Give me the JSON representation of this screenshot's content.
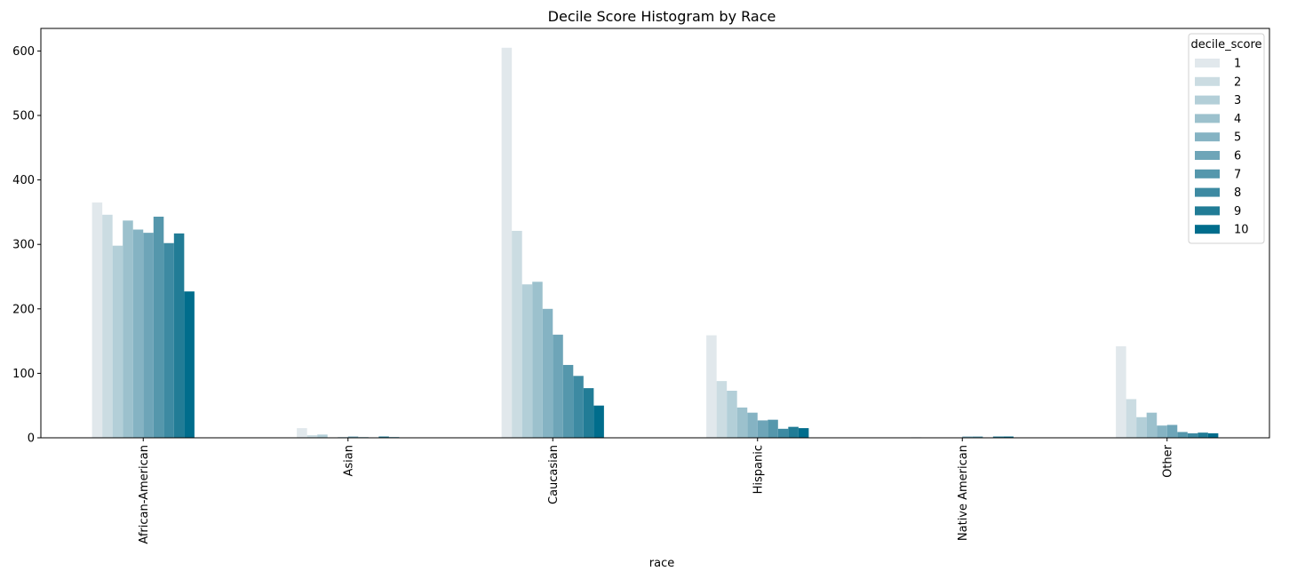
{
  "chart_data": {
    "type": "bar",
    "title": "Decile Score Histogram by Race",
    "xlabel": "race",
    "ylabel": "",
    "ylim": [
      0,
      635
    ],
    "yticks": [
      0,
      100,
      200,
      300,
      400,
      500,
      600
    ],
    "grid": false,
    "legend_title": "decile_score",
    "legend_position": "top-right",
    "categories": [
      "African-American",
      "Asian",
      "Caucasian",
      "Hispanic",
      "Native American",
      "Other"
    ],
    "series": [
      {
        "name": "1",
        "color": "#e1e8ec",
        "values": [
          365,
          15,
          605,
          159,
          1,
          142
        ]
      },
      {
        "name": "2",
        "color": "#cbdce2",
        "values": [
          346,
          4,
          321,
          88,
          0,
          60
        ]
      },
      {
        "name": "3",
        "color": "#b3cfd8",
        "values": [
          298,
          5,
          238,
          73,
          0,
          32
        ]
      },
      {
        "name": "4",
        "color": "#9cc1cd",
        "values": [
          337,
          0,
          242,
          47,
          0,
          39
        ]
      },
      {
        "name": "5",
        "color": "#85b3c3",
        "values": [
          323,
          1,
          200,
          39,
          0,
          19
        ]
      },
      {
        "name": "6",
        "color": "#6ea5b8",
        "values": [
          318,
          2,
          160,
          27,
          2,
          20
        ]
      },
      {
        "name": "7",
        "color": "#5597ac",
        "values": [
          343,
          1,
          113,
          28,
          2,
          9
        ]
      },
      {
        "name": "8",
        "color": "#3d8aa2",
        "values": [
          302,
          0,
          96,
          14,
          0,
          7
        ]
      },
      {
        "name": "9",
        "color": "#217c96",
        "values": [
          317,
          2,
          77,
          17,
          2,
          8
        ]
      },
      {
        "name": "10",
        "color": "#006d8c",
        "values": [
          227,
          1,
          50,
          15,
          2,
          7
        ]
      }
    ]
  }
}
